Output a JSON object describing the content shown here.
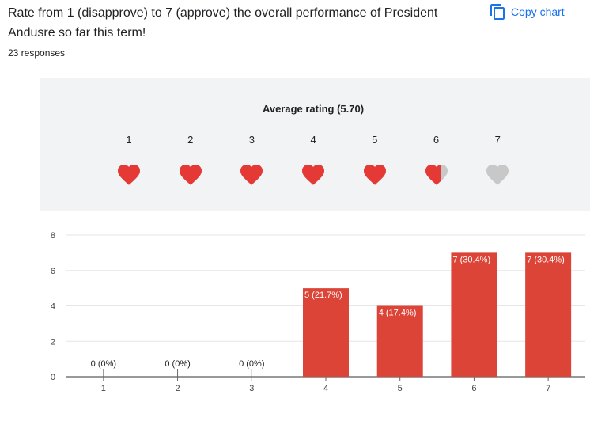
{
  "question": {
    "text": "Rate from 1 (disapprove) to 7 (approve) the overall performance of President Andusre so far this term!",
    "response_count": "23 responses"
  },
  "copy_chart": {
    "label": "Copy chart",
    "icon": "copy-icon",
    "color": "#1a73e8"
  },
  "rating_summary": {
    "label": "Average rating (5.70)",
    "average": 5.7,
    "scale": [
      "1",
      "2",
      "3",
      "4",
      "5",
      "6",
      "7"
    ],
    "heart_icon": "heart-icon",
    "filled_color": "#e53935",
    "empty_color": "#c8c8c8"
  },
  "chart_data": {
    "type": "bar",
    "categories": [
      "1",
      "2",
      "3",
      "4",
      "5",
      "6",
      "7"
    ],
    "values": [
      0,
      0,
      0,
      5,
      4,
      7,
      7
    ],
    "data_labels": [
      "0 (0%)",
      "0 (0%)",
      "0 (0%)",
      "5 (21.7%)",
      "4 (17.4%)",
      "7 (30.4%)",
      "7 (30.4%)"
    ],
    "y_ticks": [
      "0",
      "2",
      "4",
      "6",
      "8"
    ],
    "ylim": [
      0,
      8
    ],
    "grid": true,
    "bar_color": "#db4437"
  }
}
